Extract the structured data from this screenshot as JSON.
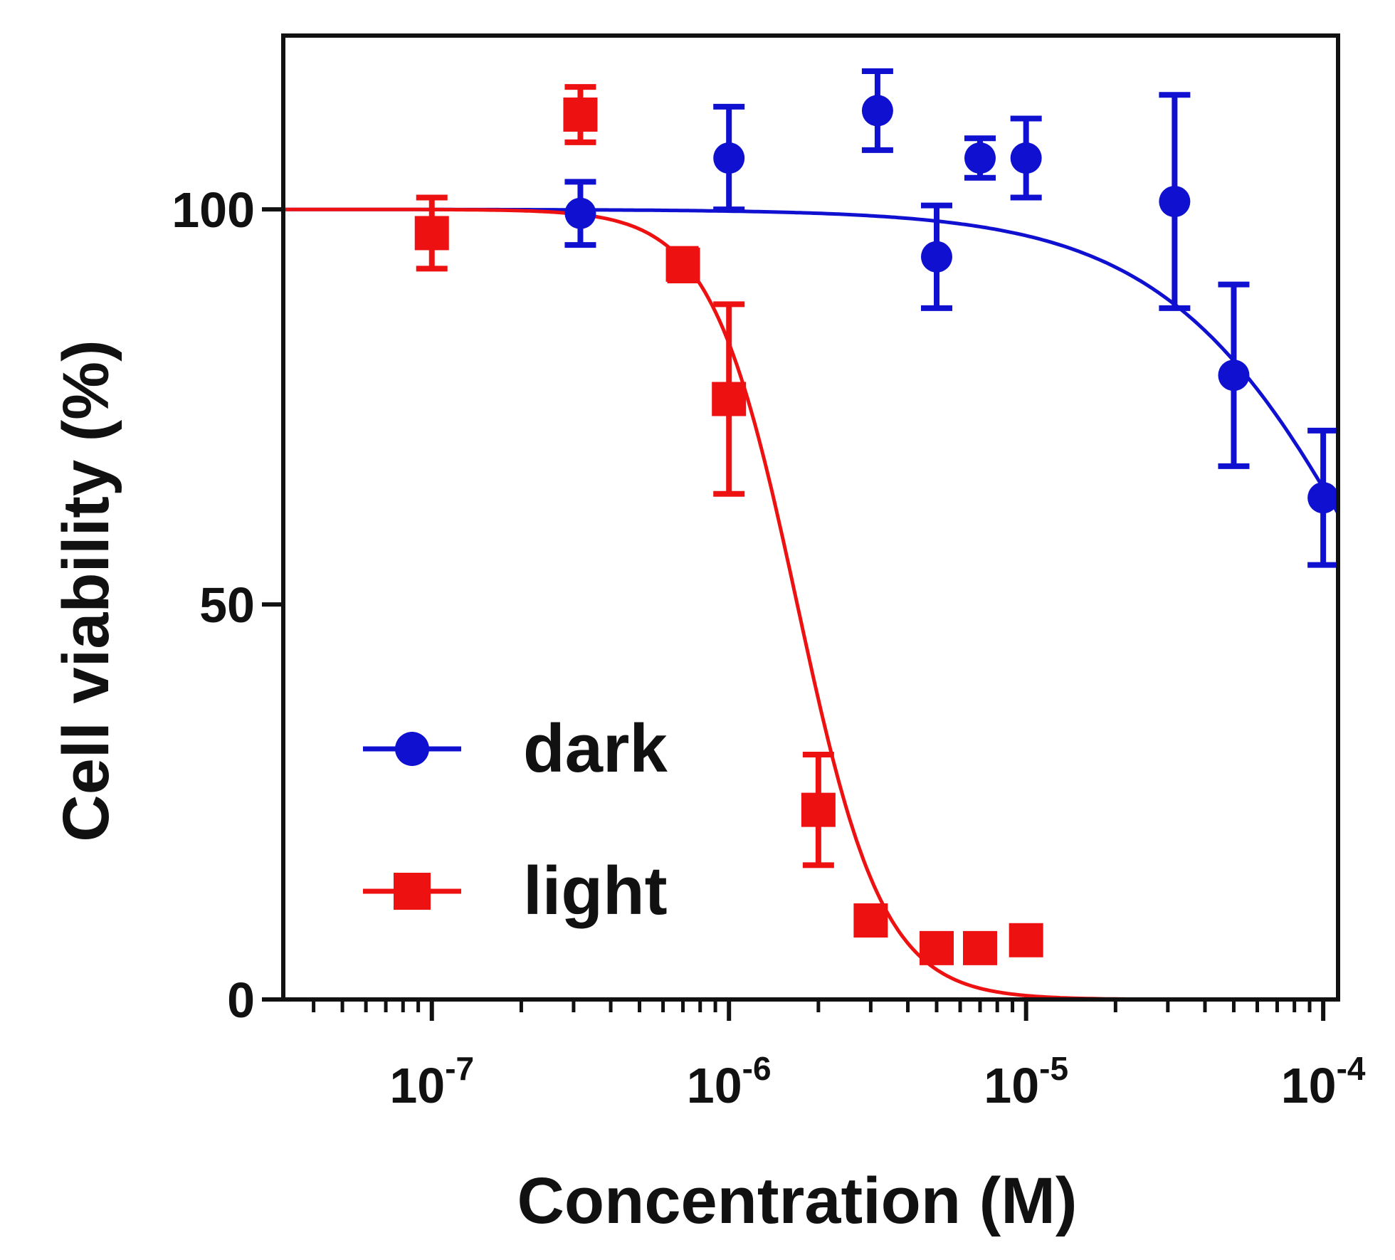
{
  "chart_data": {
    "type": "scatter",
    "xscale": "log",
    "xlabel": "Concentration (M)",
    "ylabel": "Cell viability (%)",
    "xlim_exponent": [
      -7.5,
      -3.95
    ],
    "ylim": [
      0,
      122
    ],
    "y_ticks": [
      0,
      50,
      100
    ],
    "x_ticks": [
      {
        "base": "10",
        "exp": "-7",
        "value": 1e-07
      },
      {
        "base": "10",
        "exp": "-6",
        "value": 1e-06
      },
      {
        "base": "10",
        "exp": "-5",
        "value": 1e-05
      },
      {
        "base": "10",
        "exp": "-4",
        "value": 0.0001
      }
    ],
    "series": [
      {
        "name": "dark",
        "color": "#1010d0",
        "marker": "circle",
        "points": [
          {
            "x": 3.162e-07,
            "y": 99.5,
            "err": 4.0
          },
          {
            "x": 1e-06,
            "y": 106.5,
            "err": 6.5
          },
          {
            "x": 3.162e-06,
            "y": 112.5,
            "err": 5.0
          },
          {
            "x": 5e-06,
            "y": 94.0,
            "err": 6.5
          },
          {
            "x": 7e-06,
            "y": 106.5,
            "err": 2.5
          },
          {
            "x": 1e-05,
            "y": 106.5,
            "err": 5.0
          },
          {
            "x": 3.162e-05,
            "y": 101.0,
            "err": 13.5
          },
          {
            "x": 5e-05,
            "y": 79.0,
            "err": 11.5
          },
          {
            "x": 0.0001,
            "y": 63.5,
            "err": 8.5
          }
        ],
        "fit": {
          "top": 100,
          "bottom": 0,
          "log_ic50": -3.78,
          "hill": 1.2
        }
      },
      {
        "name": "light",
        "color": "#ee1111",
        "marker": "square",
        "points": [
          {
            "x": 1e-07,
            "y": 97.0,
            "err": 4.5
          },
          {
            "x": 3.162e-07,
            "y": 112.0,
            "err": 3.5
          },
          {
            "x": 7e-07,
            "y": 93.0,
            "err": 2.0
          },
          {
            "x": 1e-06,
            "y": 76.0,
            "err": 12.0
          },
          {
            "x": 2e-06,
            "y": 24.0,
            "err": 7.0
          },
          {
            "x": 3e-06,
            "y": 10.0,
            "err": 1.5
          },
          {
            "x": 5e-06,
            "y": 6.5,
            "err": 1.5
          },
          {
            "x": 7e-06,
            "y": 6.5,
            "err": 1.5
          },
          {
            "x": 1e-05,
            "y": 7.5,
            "err": 1.5
          }
        ],
        "fit": {
          "top": 100,
          "bottom": 0,
          "log_ic50": -5.77,
          "hill": 3.0
        }
      }
    ],
    "legend": {
      "position": "lower-left",
      "entries": [
        "dark",
        "light"
      ]
    }
  }
}
